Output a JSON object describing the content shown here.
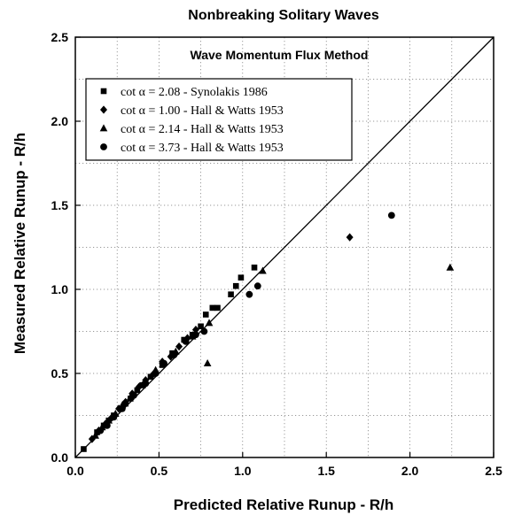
{
  "chart_data": {
    "type": "scatter",
    "title": "Nonbreaking Solitary Waves",
    "subtitle": "Wave Momentum Flux Method",
    "xlabel": "Predicted Relative Runup - R/h",
    "ylabel": "Measured Relative Runup - R/h",
    "xlim": [
      0,
      2.5
    ],
    "ylim": [
      0,
      2.5
    ],
    "xticks": [
      "0.0",
      "0.5",
      "1.0",
      "1.5",
      "2.0",
      "2.5"
    ],
    "yticks": [
      "0.0",
      "0.5",
      "1.0",
      "1.5",
      "2.0",
      "2.5"
    ],
    "grid": true,
    "legend_position": "top-left",
    "reference_line": "y = x",
    "series": [
      {
        "name": "cot α = 2.08 - Synolakis 1986",
        "marker": "square",
        "points": [
          [
            0.05,
            0.05
          ],
          [
            0.13,
            0.15
          ],
          [
            0.17,
            0.19
          ],
          [
            0.2,
            0.22
          ],
          [
            0.23,
            0.25
          ],
          [
            0.27,
            0.29
          ],
          [
            0.3,
            0.32
          ],
          [
            0.33,
            0.35
          ],
          [
            0.37,
            0.4
          ],
          [
            0.4,
            0.43
          ],
          [
            0.45,
            0.48
          ],
          [
            0.52,
            0.55
          ],
          [
            0.58,
            0.62
          ],
          [
            0.65,
            0.7
          ],
          [
            0.7,
            0.73
          ],
          [
            0.75,
            0.78
          ],
          [
            0.78,
            0.85
          ],
          [
            0.82,
            0.89
          ],
          [
            0.85,
            0.89
          ],
          [
            0.93,
            0.97
          ],
          [
            0.96,
            1.02
          ],
          [
            0.99,
            1.07
          ],
          [
            1.07,
            1.13
          ]
        ]
      },
      {
        "name": "cot α = 1.00 - Hall & Watts 1953",
        "marker": "diamond",
        "points": [
          [
            0.1,
            0.11
          ],
          [
            0.14,
            0.16
          ],
          [
            0.18,
            0.2
          ],
          [
            0.22,
            0.24
          ],
          [
            0.26,
            0.29
          ],
          [
            0.3,
            0.33
          ],
          [
            0.34,
            0.38
          ],
          [
            0.38,
            0.42
          ],
          [
            0.42,
            0.46
          ],
          [
            0.47,
            0.5
          ],
          [
            0.52,
            0.57
          ],
          [
            0.57,
            0.6
          ],
          [
            0.62,
            0.66
          ],
          [
            0.67,
            0.71
          ],
          [
            0.72,
            0.76
          ],
          [
            1.64,
            1.31
          ]
        ]
      },
      {
        "name": "cot α = 2.14 - Hall & Watts 1953",
        "marker": "triangle",
        "points": [
          [
            0.12,
            0.13
          ],
          [
            0.16,
            0.18
          ],
          [
            0.2,
            0.22
          ],
          [
            0.24,
            0.26
          ],
          [
            0.28,
            0.31
          ],
          [
            0.33,
            0.36
          ],
          [
            0.4,
            0.43
          ],
          [
            0.48,
            0.52
          ],
          [
            0.6,
            0.63
          ],
          [
            0.7,
            0.72
          ],
          [
            0.8,
            0.8
          ],
          [
            0.79,
            0.56
          ],
          [
            1.12,
            1.11
          ],
          [
            2.24,
            1.13
          ]
        ]
      },
      {
        "name": "cot α = 3.73 - Hall & Watts 1953",
        "marker": "circle",
        "points": [
          [
            0.15,
            0.16
          ],
          [
            0.19,
            0.19
          ],
          [
            0.23,
            0.24
          ],
          [
            0.28,
            0.29
          ],
          [
            0.35,
            0.37
          ],
          [
            0.42,
            0.44
          ],
          [
            0.48,
            0.5
          ],
          [
            0.53,
            0.56
          ],
          [
            0.59,
            0.61
          ],
          [
            0.66,
            0.69
          ],
          [
            0.72,
            0.73
          ],
          [
            0.77,
            0.75
          ],
          [
            1.04,
            0.97
          ],
          [
            1.09,
            1.02
          ],
          [
            1.89,
            1.44
          ]
        ]
      }
    ]
  }
}
